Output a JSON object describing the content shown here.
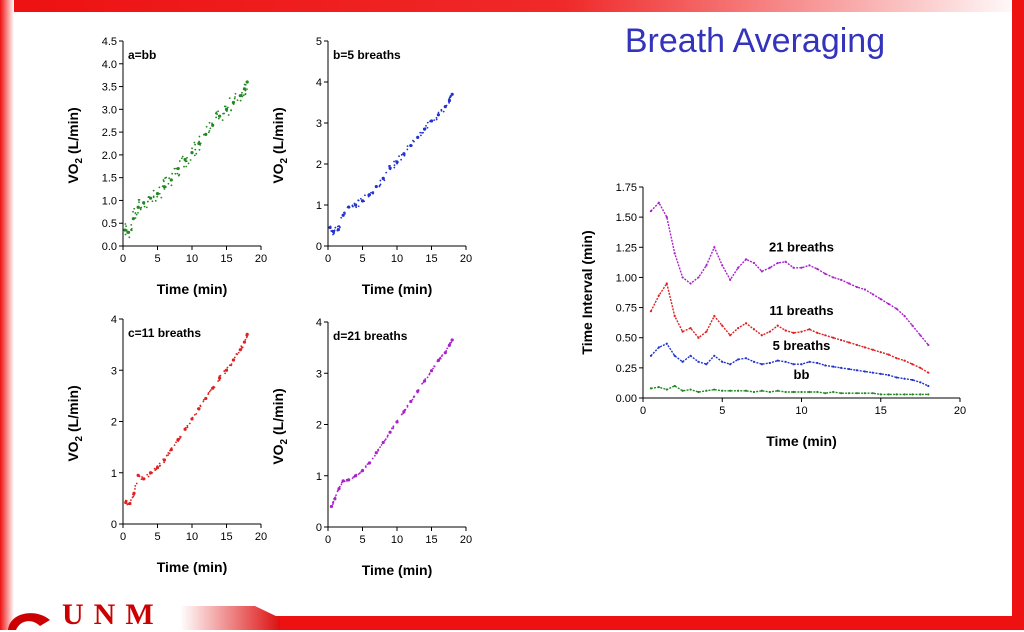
{
  "slide": {
    "title": "Breath Averaging",
    "logo_text": "UNM",
    "colors": {
      "title": "#3333bb",
      "frame_red": "#ee1111",
      "logo_red": "#cc0000"
    }
  },
  "chart_data": [
    {
      "id": "a",
      "type": "scatter",
      "panel_label": "a=bb",
      "xlabel": "Time (min)",
      "ylabel": "VO2 (L/min)",
      "xlim": [
        0,
        20
      ],
      "ylim": [
        0,
        4.5
      ],
      "xticks": [
        0,
        5,
        10,
        15,
        20
      ],
      "yticks": [
        0.0,
        0.5,
        1.0,
        1.5,
        2.0,
        2.5,
        3.0,
        3.5,
        4.0,
        4.5
      ],
      "ytick_labels": [
        "0.0",
        "0.5",
        "1.0",
        "1.5",
        "2.0",
        "2.5",
        "3.0",
        "3.5",
        "4.0",
        "4.5"
      ],
      "color": "#228822",
      "x": [
        0.3,
        0.8,
        1.5,
        2.2,
        3,
        4,
        5,
        6,
        7,
        8,
        9,
        10,
        11,
        12,
        13,
        14,
        15,
        16,
        17,
        17.6,
        18
      ],
      "y": [
        0.35,
        0.3,
        0.6,
        0.85,
        0.95,
        1.05,
        1.15,
        1.3,
        1.45,
        1.7,
        1.9,
        2.05,
        2.25,
        2.45,
        2.65,
        2.85,
        3.0,
        3.15,
        3.3,
        3.45,
        3.6
      ]
    },
    {
      "id": "b",
      "type": "scatter",
      "panel_label": "b=5 breaths",
      "xlabel": "Time (min)",
      "ylabel": "VO2 (L/min)",
      "xlim": [
        0,
        20
      ],
      "ylim": [
        0,
        5
      ],
      "xticks": [
        0,
        5,
        10,
        15,
        20
      ],
      "yticks": [
        0,
        1,
        2,
        3,
        4,
        5
      ],
      "ytick_labels": [
        "0",
        "1",
        "2",
        "3",
        "4",
        "5"
      ],
      "color": "#2233cc",
      "x": [
        0.3,
        0.8,
        1.5,
        2.2,
        3,
        4,
        5,
        6,
        7,
        8,
        9,
        10,
        11,
        12,
        13,
        14,
        15,
        16,
        17,
        17.6,
        18
      ],
      "y": [
        0.45,
        0.35,
        0.4,
        0.75,
        0.95,
        1.0,
        1.1,
        1.25,
        1.45,
        1.65,
        1.9,
        2.05,
        2.25,
        2.45,
        2.65,
        2.85,
        3.05,
        3.2,
        3.4,
        3.55,
        3.7
      ]
    },
    {
      "id": "c",
      "type": "scatter",
      "panel_label": "c=11 breaths",
      "xlabel": "Time (min)",
      "ylabel": "VO2 (L/min)",
      "xlim": [
        0,
        20
      ],
      "ylim": [
        0,
        4
      ],
      "xticks": [
        0,
        5,
        10,
        15,
        20
      ],
      "yticks": [
        0,
        1,
        2,
        3,
        4
      ],
      "ytick_labels": [
        "0",
        "1",
        "2",
        "3",
        "4"
      ],
      "color": "#dd2222",
      "x": [
        0.4,
        1,
        1.6,
        2.2,
        3,
        4,
        5,
        6,
        7,
        8,
        9,
        10,
        11,
        12,
        13,
        14,
        15,
        16,
        17,
        17.6,
        18
      ],
      "y": [
        0.42,
        0.4,
        0.6,
        0.95,
        0.88,
        1.0,
        1.1,
        1.25,
        1.45,
        1.65,
        1.85,
        2.05,
        2.25,
        2.45,
        2.65,
        2.85,
        3.0,
        3.2,
        3.4,
        3.55,
        3.7
      ]
    },
    {
      "id": "d",
      "type": "scatter",
      "panel_label": "d=21 breaths",
      "xlabel": "Time (min)",
      "ylabel": "VO2 (L/min)",
      "xlim": [
        0,
        20
      ],
      "ylim": [
        0,
        4
      ],
      "xticks": [
        0,
        5,
        10,
        15,
        20
      ],
      "yticks": [
        0,
        1,
        2,
        3,
        4
      ],
      "ytick_labels": [
        "0",
        "1",
        "2",
        "3",
        "4"
      ],
      "color": "#aa22cc",
      "x": [
        0.5,
        1,
        1.6,
        2.2,
        3,
        4,
        5,
        6,
        7,
        8,
        9,
        10,
        11,
        12,
        13,
        14,
        15,
        16,
        17,
        17.6,
        18
      ],
      "y": [
        0.4,
        0.55,
        0.75,
        0.9,
        0.92,
        1.0,
        1.1,
        1.25,
        1.45,
        1.65,
        1.85,
        2.05,
        2.25,
        2.45,
        2.65,
        2.85,
        3.05,
        3.25,
        3.4,
        3.55,
        3.65
      ]
    },
    {
      "id": "e",
      "type": "line",
      "xlabel": "Time (min)",
      "ylabel": "Time Interval (min)",
      "xlim": [
        0,
        20
      ],
      "ylim": [
        0,
        1.75
      ],
      "xticks": [
        0,
        5,
        10,
        15,
        20
      ],
      "yticks": [
        0.0,
        0.25,
        0.5,
        0.75,
        1.0,
        1.25,
        1.5,
        1.75
      ],
      "ytick_labels": [
        "0.00",
        "0.25",
        "0.50",
        "0.75",
        "1.00",
        "1.25",
        "1.50",
        "1.75"
      ],
      "x": [
        0.5,
        1,
        1.5,
        2,
        2.5,
        3,
        3.5,
        4,
        4.5,
        5,
        5.5,
        6,
        6.5,
        7,
        7.5,
        8,
        8.5,
        9,
        9.5,
        10,
        10.5,
        11,
        11.5,
        12,
        12.5,
        13,
        13.5,
        14,
        14.5,
        15,
        15.5,
        16,
        16.5,
        17,
        17.5,
        18
      ],
      "series": [
        {
          "name": "21 breaths",
          "color": "#aa22cc",
          "y": [
            1.55,
            1.62,
            1.5,
            1.2,
            1.0,
            0.95,
            1.0,
            1.1,
            1.25,
            1.1,
            0.98,
            1.08,
            1.15,
            1.12,
            1.05,
            1.08,
            1.12,
            1.13,
            1.08,
            1.08,
            1.1,
            1.07,
            1.03,
            1.0,
            0.98,
            0.95,
            0.92,
            0.9,
            0.86,
            0.82,
            0.78,
            0.74,
            0.68,
            0.6,
            0.52,
            0.44
          ]
        },
        {
          "name": "11 breaths",
          "color": "#dd2222",
          "y": [
            0.72,
            0.85,
            0.95,
            0.68,
            0.55,
            0.58,
            0.5,
            0.55,
            0.68,
            0.6,
            0.52,
            0.58,
            0.62,
            0.57,
            0.52,
            0.55,
            0.6,
            0.56,
            0.54,
            0.55,
            0.57,
            0.54,
            0.52,
            0.5,
            0.48,
            0.46,
            0.44,
            0.42,
            0.4,
            0.38,
            0.36,
            0.33,
            0.31,
            0.28,
            0.25,
            0.21
          ]
        },
        {
          "name": "5 breaths",
          "color": "#2233cc",
          "y": [
            0.35,
            0.42,
            0.45,
            0.35,
            0.3,
            0.35,
            0.3,
            0.28,
            0.35,
            0.3,
            0.28,
            0.32,
            0.33,
            0.3,
            0.28,
            0.29,
            0.31,
            0.3,
            0.28,
            0.28,
            0.3,
            0.29,
            0.27,
            0.26,
            0.25,
            0.24,
            0.23,
            0.22,
            0.21,
            0.2,
            0.19,
            0.17,
            0.16,
            0.15,
            0.13,
            0.1
          ]
        },
        {
          "name": "bb",
          "color": "#228822",
          "y": [
            0.08,
            0.09,
            0.07,
            0.1,
            0.06,
            0.07,
            0.05,
            0.06,
            0.07,
            0.06,
            0.06,
            0.06,
            0.06,
            0.05,
            0.06,
            0.05,
            0.06,
            0.05,
            0.05,
            0.05,
            0.05,
            0.05,
            0.04,
            0.05,
            0.04,
            0.04,
            0.04,
            0.04,
            0.04,
            0.03,
            0.03,
            0.03,
            0.03,
            0.03,
            0.03,
            0.03
          ]
        }
      ]
    }
  ]
}
